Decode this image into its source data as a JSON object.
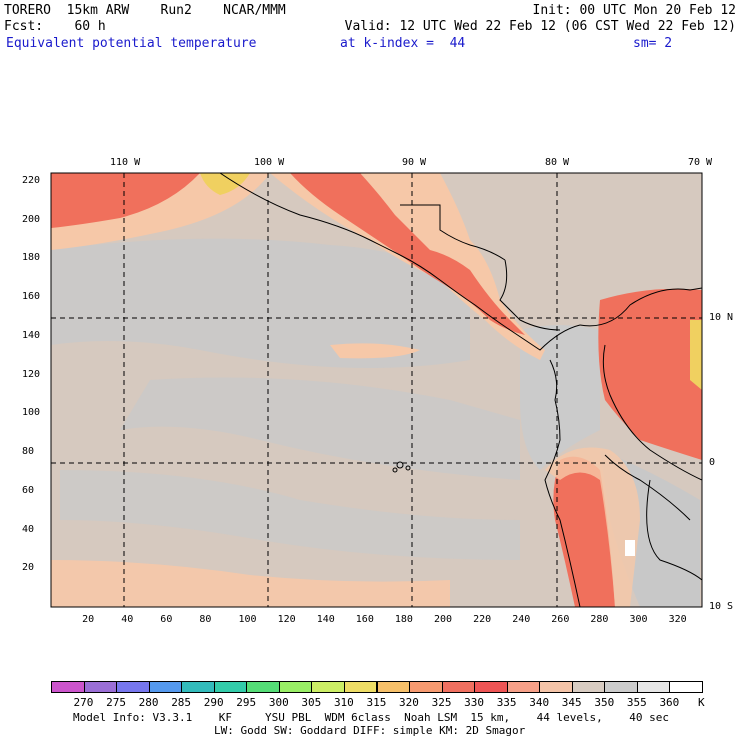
{
  "header": {
    "line1_left": "TORERO  15km ARW    Run2    NCAR/MMM",
    "line1_right": "Init: 00 UTC Mon 20 Feb 12",
    "line2_left": "Fcst:    60 h",
    "line2_right": "Valid: 12 UTC Wed 22 Feb 12 (06 CST Wed 22 Feb 12)",
    "line3_field": "Equivalent potential temperature",
    "line3_level": "at k-index =  44",
    "line3_sm": "sm= 2"
  },
  "map": {
    "top_lon_labels": [
      "110 W",
      "100 W",
      "90 W",
      "80 W",
      "70 W"
    ],
    "right_lat_labels": [
      "10 N",
      "0",
      "10 S"
    ],
    "y_grid_labels": [
      "20",
      "40",
      "60",
      "80",
      "100",
      "120",
      "140",
      "160",
      "180",
      "200",
      "220"
    ],
    "x_grid_labels": [
      "20",
      "40",
      "60",
      "80",
      "100",
      "120",
      "140",
      "160",
      "180",
      "200",
      "220",
      "240",
      "260",
      "280",
      "300",
      "320"
    ],
    "colors": {
      "ocean": "#d6c9bf",
      "cool": "#c9c9c9",
      "warm1": "#f6c8a8",
      "warm2": "#f3a584",
      "warm3": "#f0705c",
      "hot": "#f0d060"
    }
  },
  "legend": {
    "labels": [
      "270",
      "275",
      "280",
      "285",
      "290",
      "295",
      "300",
      "305",
      "310",
      "315",
      "320",
      "325",
      "330",
      "335",
      "340",
      "345",
      "350",
      "355",
      "360"
    ],
    "colors": [
      "#cc55cc",
      "#9b6fd6",
      "#7777ee",
      "#5599ee",
      "#33bbbb",
      "#33ccaa",
      "#55dd77",
      "#99ee66",
      "#ccee66",
      "#eedd66",
      "#f6c06a",
      "#f69a70",
      "#f07060",
      "#ee5555",
      "#f6a088",
      "#f4c4a8",
      "#d8ccc2",
      "#cccccc",
      "#e6e6e6",
      "#ffffff"
    ],
    "unit": "K"
  },
  "footer": {
    "line1": "Model Info: V3.3.1    KF     YSU PBL  WDM 6class  Noah LSM  15 km,    44 levels,    40 sec",
    "line2": "LW: Godd SW: Goddard DIFF: simple KM: 2D Smagor"
  }
}
